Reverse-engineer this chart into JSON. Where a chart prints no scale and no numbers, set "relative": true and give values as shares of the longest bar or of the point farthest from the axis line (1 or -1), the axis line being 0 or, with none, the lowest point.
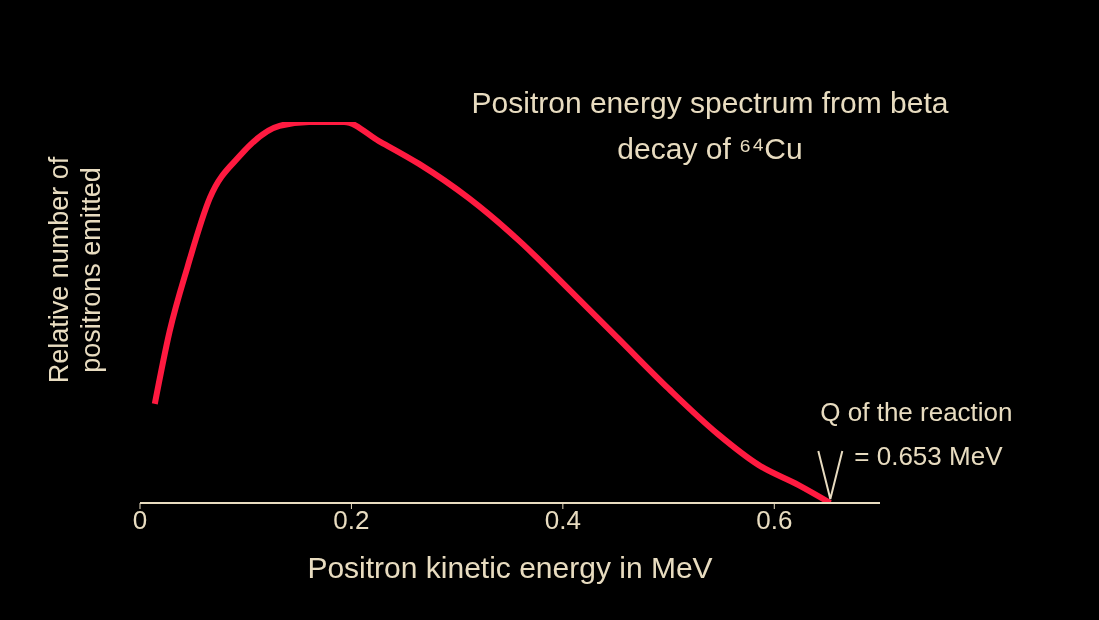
{
  "chart_data": {
    "type": "line",
    "title": "Positron energy spectrum from beta decay of ⁶⁴Cu",
    "xlabel": "Positron kinetic energy in MeV",
    "ylabel": "Relative number of positrons emitted",
    "relative": true,
    "xlim": [
      0,
      0.7
    ],
    "xticks": [
      0,
      0.2,
      0.4,
      0.6
    ],
    "grid": false,
    "legend": false,
    "marker": "none",
    "line_style": "solid",
    "annotations": [
      {
        "text": "Q of the reaction\n= 0.653 MeV",
        "x": 0.653,
        "y": 0
      }
    ],
    "series": [
      {
        "color": "#ff1a40",
        "x": [
          0.014,
          0.028,
          0.045,
          0.066,
          0.094,
          0.132,
          0.16,
          0.193,
          0.226,
          0.264,
          0.311,
          0.358,
          0.406,
          0.453,
          0.5,
          0.547,
          0.585,
          0.623,
          0.653
        ],
        "values": [
          0.26,
          0.45,
          0.62,
          0.8,
          0.91,
          0.99,
          1,
          1,
          0.95,
          0.89,
          0.8,
          0.69,
          0.56,
          0.43,
          0.3,
          0.18,
          0.1,
          0.047,
          0
        ]
      }
    ]
  }
}
